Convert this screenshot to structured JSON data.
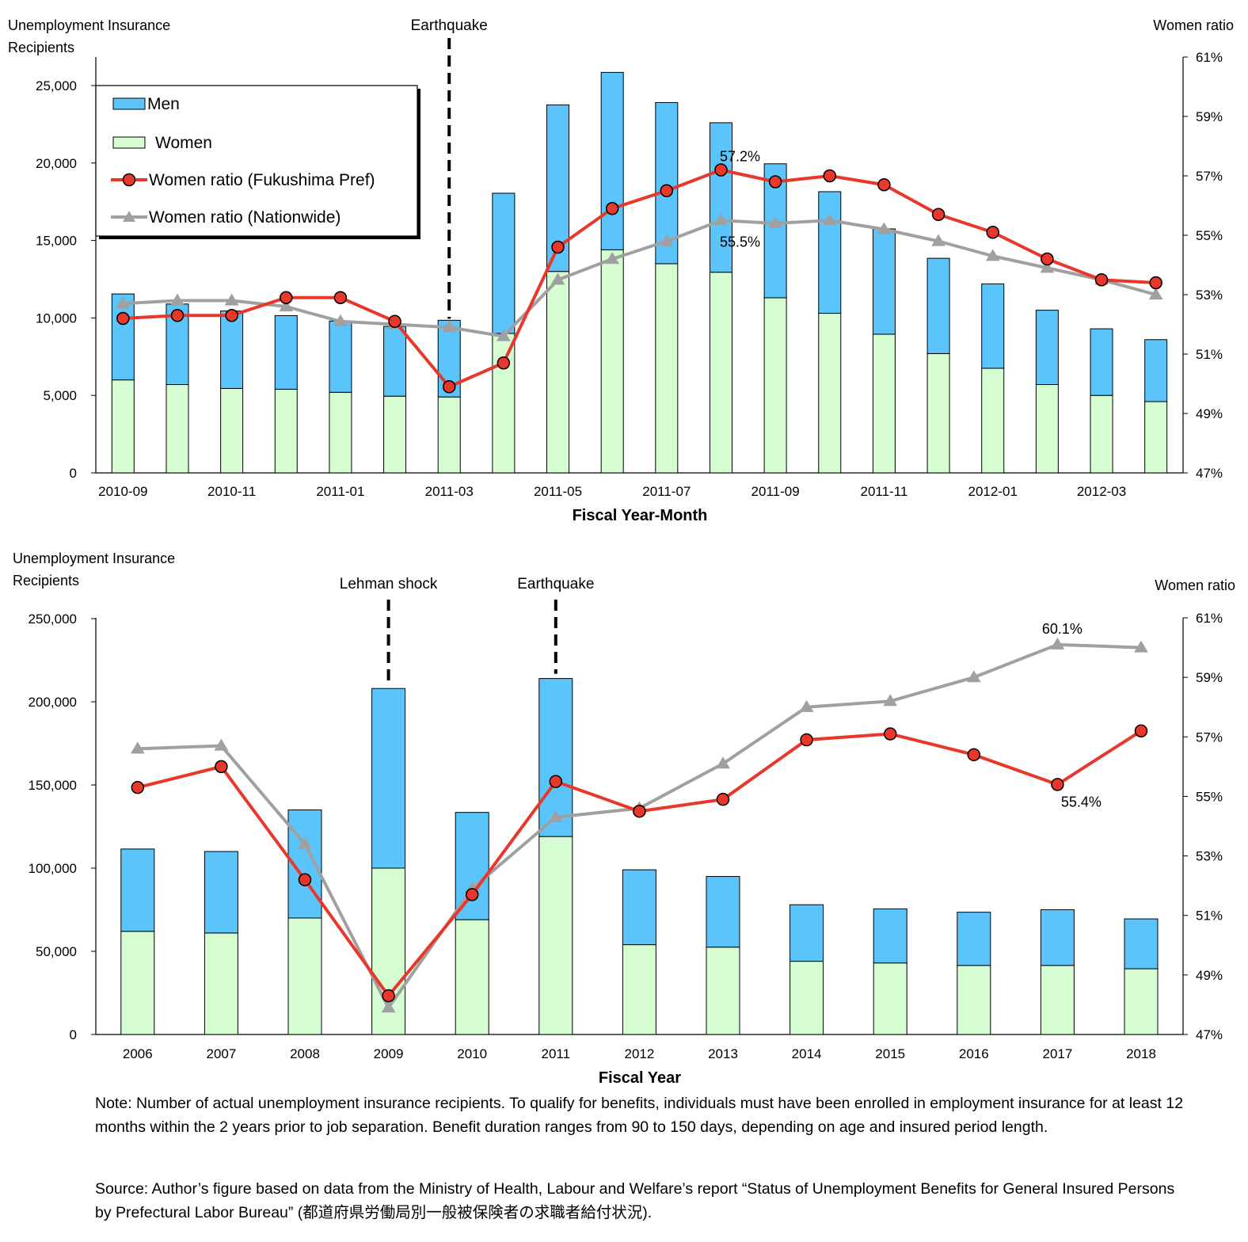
{
  "colors": {
    "men": "#5bc5fb",
    "women": "#d6fcd2",
    "fukushima": "#e8372b",
    "nationwide": "#a0a0a0"
  },
  "chart_data": [
    {
      "type": "bar",
      "stacked": true,
      "xlabel": "Fiscal Year-Month",
      "ylabel_left": "Unemployment Insurance Recipients",
      "ylabel_right": "Women ratio",
      "ylim_left": [
        0,
        27000
      ],
      "ylim_right": [
        47,
        61
      ],
      "yticks_left": [
        "0",
        "5,000",
        "10,000",
        "15,000",
        "20,000",
        "25,000"
      ],
      "yticks_right": [
        "47%",
        "49%",
        "51%",
        "53%",
        "55%",
        "57%",
        "59%",
        "61%"
      ],
      "categories": [
        "2010-09",
        "2010-10",
        "2010-11",
        "2010-12",
        "2011-01",
        "2011-02",
        "2011-03",
        "2011-04",
        "2011-05",
        "2011-06",
        "2011-07",
        "2011-08",
        "2011-09",
        "2011-10",
        "2011-11",
        "2011-12",
        "2012-01",
        "2012-02",
        "2012-03",
        "2012-04"
      ],
      "tick_labels": [
        "2010-09",
        "",
        "2010-11",
        "",
        "2011-01",
        "",
        "2011-03",
        "",
        "2011-05",
        "",
        "2011-07",
        "",
        "2011-09",
        "",
        "2011-11",
        "",
        "2012-01",
        "",
        "2012-03",
        ""
      ],
      "series": [
        {
          "name": "Women",
          "kind": "bar",
          "values": [
            6000,
            5700,
            5450,
            5400,
            5200,
            4950,
            4900,
            9000,
            13000,
            14400,
            13500,
            12950,
            11300,
            10300,
            8950,
            7700,
            6750,
            5700,
            5000,
            4600
          ]
        },
        {
          "name": "Men",
          "kind": "bar",
          "values": [
            5550,
            5200,
            5000,
            4750,
            4600,
            4500,
            4950,
            9050,
            10750,
            11450,
            10400,
            9650,
            8650,
            7850,
            6800,
            6150,
            5450,
            4800,
            4300,
            4000
          ]
        },
        {
          "name": "Women ratio (Fukushima Pref)",
          "kind": "line",
          "axis": "right",
          "values": [
            52.2,
            52.3,
            52.3,
            52.9,
            52.9,
            52.1,
            49.9,
            50.7,
            54.6,
            55.9,
            56.5,
            57.2,
            56.8,
            57.0,
            56.7,
            55.7,
            55.1,
            54.2,
            53.5,
            53.4
          ]
        },
        {
          "name": "Women ratio (Nationwide)",
          "kind": "line",
          "axis": "right",
          "values": [
            52.7,
            52.8,
            52.8,
            52.6,
            52.1,
            52.0,
            51.9,
            51.6,
            53.5,
            54.2,
            54.8,
            55.5,
            55.4,
            55.5,
            55.2,
            54.8,
            54.3,
            53.9,
            53.5,
            53.0
          ]
        }
      ],
      "events": [
        {
          "label": "Earthquake",
          "at": "2011-03"
        }
      ],
      "annotations": [
        {
          "text": "57.2%",
          "at": "2011-08",
          "series": "Women ratio (Fukushima Pref)"
        },
        {
          "text": "55.5%",
          "at": "2011-08",
          "series": "Women ratio (Nationwide)"
        }
      ],
      "legend": {
        "position": "top-left",
        "items": [
          {
            "label": "Men",
            "kind": "bar",
            "series": "Men"
          },
          {
            "label": "Women",
            "kind": "bar",
            "series": "Women"
          },
          {
            "label": "Women ratio (Fukushima Pref)",
            "kind": "line-circle",
            "series": "Women ratio (Fukushima Pref)"
          },
          {
            "label": "Women ratio (Nationwide)",
            "kind": "line-triangle",
            "series": "Women ratio (Nationwide)"
          }
        ]
      }
    },
    {
      "type": "bar",
      "stacked": true,
      "xlabel": "Fiscal Year",
      "ylabel_left": "Unemployment Insurance Recipients",
      "ylabel_right": "Women ratio",
      "ylim_left": [
        0,
        250000
      ],
      "ylim_right": [
        47,
        61
      ],
      "yticks_left": [
        "0",
        "50,000",
        "100,000",
        "150,000",
        "200,000",
        "250,000"
      ],
      "yticks_right": [
        "47%",
        "49%",
        "51%",
        "53%",
        "55%",
        "57%",
        "59%",
        "61%"
      ],
      "categories": [
        "2006",
        "2007",
        "2008",
        "2009",
        "2010",
        "2011",
        "2012",
        "2013",
        "2014",
        "2015",
        "2016",
        "2017",
        "2018"
      ],
      "tick_labels": [
        "2006",
        "2007",
        "2008",
        "2009",
        "2010",
        "2011",
        "2012",
        "2013",
        "2014",
        "2015",
        "2016",
        "2017",
        "2018"
      ],
      "series": [
        {
          "name": "Women",
          "kind": "bar",
          "values": [
            62000,
            61000,
            70000,
            100000,
            69000,
            119000,
            54000,
            52500,
            44000,
            43000,
            41500,
            41500,
            39500
          ]
        },
        {
          "name": "Men",
          "kind": "bar",
          "values": [
            49500,
            49000,
            65000,
            108000,
            64500,
            95000,
            45000,
            42500,
            34000,
            32500,
            32000,
            33500,
            30000
          ]
        },
        {
          "name": "Women ratio (Fukushima Pref)",
          "kind": "line",
          "axis": "right",
          "values": [
            55.3,
            56.0,
            52.2,
            48.3,
            51.7,
            55.5,
            54.5,
            54.9,
            56.9,
            57.1,
            56.4,
            55.4,
            57.2
          ]
        },
        {
          "name": "Women ratio (Nationwide)",
          "kind": "line",
          "axis": "right",
          "values": [
            56.6,
            56.7,
            53.4,
            47.9,
            51.9,
            54.3,
            54.6,
            56.1,
            58.0,
            58.2,
            59.0,
            60.1,
            60.0
          ]
        }
      ],
      "events": [
        {
          "label": "Lehman shock",
          "at": "2009"
        },
        {
          "label": "Earthquake",
          "at": "2011"
        }
      ],
      "annotations": [
        {
          "text": "60.1%",
          "at": "2017",
          "series": "Women ratio (Nationwide)"
        },
        {
          "text": "55.4%",
          "at": "2017",
          "series": "Women ratio (Fukushima Pref)"
        }
      ]
    }
  ],
  "notes": {
    "note": "Note: Number of actual unemployment insurance recipients. To qualify for benefits, individuals must have been enrolled in employment insurance for at least 12 months within the 2 years prior to job separation. Benefit duration ranges from 90 to 150 days, depending on age and insured period length.",
    "source": "Source: Author’s figure based on data from the Ministry of Health, Labour and Welfare’s report “Status of Unemployment Benefits for General Insured Persons by Prefectural Labor Bureau” (都道府県労働局別一般被保険者の求職者給付状況)."
  }
}
